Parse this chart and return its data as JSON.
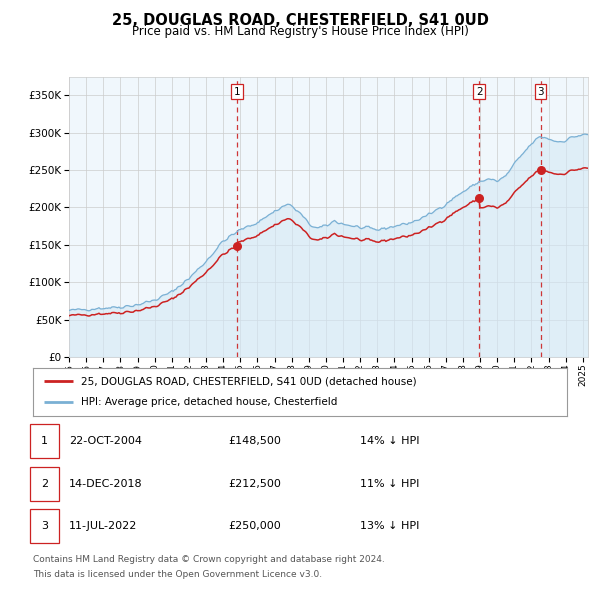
{
  "title": "25, DOUGLAS ROAD, CHESTERFIELD, S41 0UD",
  "subtitle": "Price paid vs. HM Land Registry's House Price Index (HPI)",
  "ytick_values": [
    0,
    50000,
    100000,
    150000,
    200000,
    250000,
    300000,
    350000
  ],
  "ylim": [
    0,
    375000
  ],
  "xlim_start": 1995.0,
  "xlim_end": 2025.3,
  "sale_dates": [
    2004.81,
    2018.96,
    2022.53
  ],
  "sale_prices": [
    148500,
    212500,
    250000
  ],
  "sale_labels": [
    "1",
    "2",
    "3"
  ],
  "legend_entries": [
    "25, DOUGLAS ROAD, CHESTERFIELD, S41 0UD (detached house)",
    "HPI: Average price, detached house, Chesterfield"
  ],
  "table_rows": [
    [
      "1",
      "22-OCT-2004",
      "£148,500",
      "14% ↓ HPI"
    ],
    [
      "2",
      "14-DEC-2018",
      "£212,500",
      "11% ↓ HPI"
    ],
    [
      "3",
      "11-JUL-2022",
      "£250,000",
      "13% ↓ HPI"
    ]
  ],
  "footnote1": "Contains HM Land Registry data © Crown copyright and database right 2024.",
  "footnote2": "This data is licensed under the Open Government Licence v3.0.",
  "hpi_color": "#7ab0d4",
  "hpi_fill_color": "#d4e8f5",
  "sale_line_color": "#cc2222",
  "dashed_line_color": "#cc2222",
  "background_color": "#ffffff",
  "grid_color": "#cccccc",
  "chart_bg": "#f0f7fc"
}
